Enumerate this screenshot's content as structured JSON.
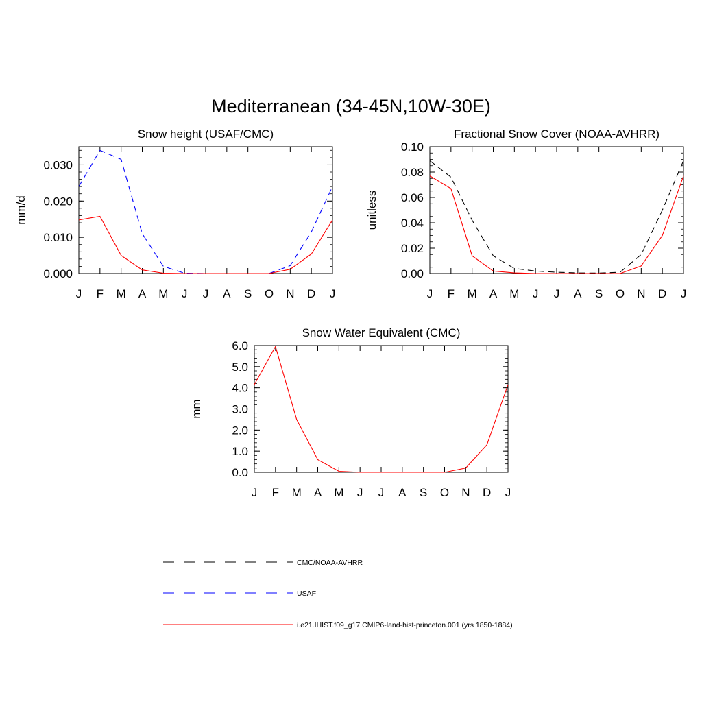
{
  "figure": {
    "title": "Mediterranean (34-45N,10W-30E)"
  },
  "legend": {
    "entries": [
      {
        "label": "CMC/NOAA-AVHRR",
        "color": "#000000",
        "dash": "dashed"
      },
      {
        "label": "USAF",
        "color": "#0000ff",
        "dash": "dashed"
      },
      {
        "label": "i.e21.IHIST.f09_g17.CMIP6-land-hist-princeton.001 (yrs 1850-1884)",
        "color": "#ff0000",
        "dash": "solid"
      }
    ]
  },
  "chart_data": [
    {
      "type": "line",
      "title": "Snow height (USAF/CMC)",
      "xlabel": "",
      "ylabel": "mm/d",
      "categories": [
        "J",
        "F",
        "M",
        "A",
        "M",
        "J",
        "J",
        "A",
        "S",
        "O",
        "N",
        "D",
        "J"
      ],
      "ylim": [
        0,
        0.035
      ],
      "yticks": [
        0,
        0.01,
        0.02,
        0.03
      ],
      "ytick_labels": [
        "0.000",
        "0.010",
        "0.020",
        "0.030"
      ],
      "yminor_step": 0.002,
      "series": [
        {
          "name": "USAF",
          "color": "#0000ff",
          "dash": "dashed",
          "values": [
            0.024,
            0.034,
            0.0315,
            0.011,
            0.002,
            0.0001,
            0.0,
            0.0,
            0.0,
            0.0,
            0.0022,
            0.0115,
            0.024
          ]
        },
        {
          "name": "i.e21.IHIST.f09_g17.CMIP6-land-hist-princeton.001 (yrs 1850-1884)",
          "color": "#ff0000",
          "dash": "solid",
          "values": [
            0.0148,
            0.0158,
            0.005,
            0.001,
            0.0001,
            0.0,
            0.0,
            0.0,
            0.0,
            0.0,
            0.0012,
            0.0054,
            0.0148
          ]
        }
      ]
    },
    {
      "type": "line",
      "title": "Fractional Snow Cover (NOAA-AVHRR)",
      "xlabel": "",
      "ylabel": "unitless",
      "categories": [
        "J",
        "F",
        "M",
        "A",
        "M",
        "J",
        "J",
        "A",
        "S",
        "O",
        "N",
        "D",
        "J"
      ],
      "ylim": [
        0,
        0.1
      ],
      "yticks": [
        0,
        0.02,
        0.04,
        0.06,
        0.08,
        0.1
      ],
      "ytick_labels": [
        "0.00",
        "0.02",
        "0.04",
        "0.06",
        "0.08",
        "0.10"
      ],
      "yminor_step": 0.005,
      "series": [
        {
          "name": "CMC/NOAA-AVHRR",
          "color": "#000000",
          "dash": "dashed",
          "values": [
            0.089,
            0.076,
            0.042,
            0.014,
            0.004,
            0.002,
            0.001,
            0.0005,
            0.0003,
            0.001,
            0.015,
            0.05,
            0.089
          ]
        },
        {
          "name": "i.e21.IHIST.f09_g17.CMIP6-land-hist-princeton.001 (yrs 1850-1884)",
          "color": "#ff0000",
          "dash": "solid",
          "values": [
            0.077,
            0.067,
            0.014,
            0.002,
            0.0005,
            0.0,
            0.0,
            0.0,
            0.0,
            0.0,
            0.006,
            0.03,
            0.077
          ]
        }
      ]
    },
    {
      "type": "line",
      "title": "Snow Water Equivalent (CMC)",
      "xlabel": "",
      "ylabel": "mm",
      "categories": [
        "J",
        "F",
        "M",
        "A",
        "M",
        "J",
        "J",
        "A",
        "S",
        "O",
        "N",
        "D",
        "J"
      ],
      "ylim": [
        0,
        6.0
      ],
      "yticks": [
        0,
        1,
        2,
        3,
        4,
        5,
        6
      ],
      "ytick_labels": [
        "0.0",
        "1.0",
        "2.0",
        "3.0",
        "4.0",
        "5.0",
        "6.0"
      ],
      "yminor_step": 0.2,
      "series": [
        {
          "name": "CMC/NOAA-AVHRR",
          "color": "#000000",
          "dash": "dashed",
          "values": [
            0,
            0,
            0,
            0,
            0,
            0,
            0,
            0,
            0,
            0,
            0,
            0,
            0
          ]
        },
        {
          "name": "i.e21.IHIST.f09_g17.CMIP6-land-hist-princeton.001 (yrs 1850-1884)",
          "color": "#ff0000",
          "dash": "solid",
          "values": [
            4.15,
            5.95,
            2.5,
            0.6,
            0.05,
            0.0,
            0.0,
            0.0,
            0.0,
            0.0,
            0.2,
            1.3,
            4.15
          ]
        }
      ]
    }
  ]
}
